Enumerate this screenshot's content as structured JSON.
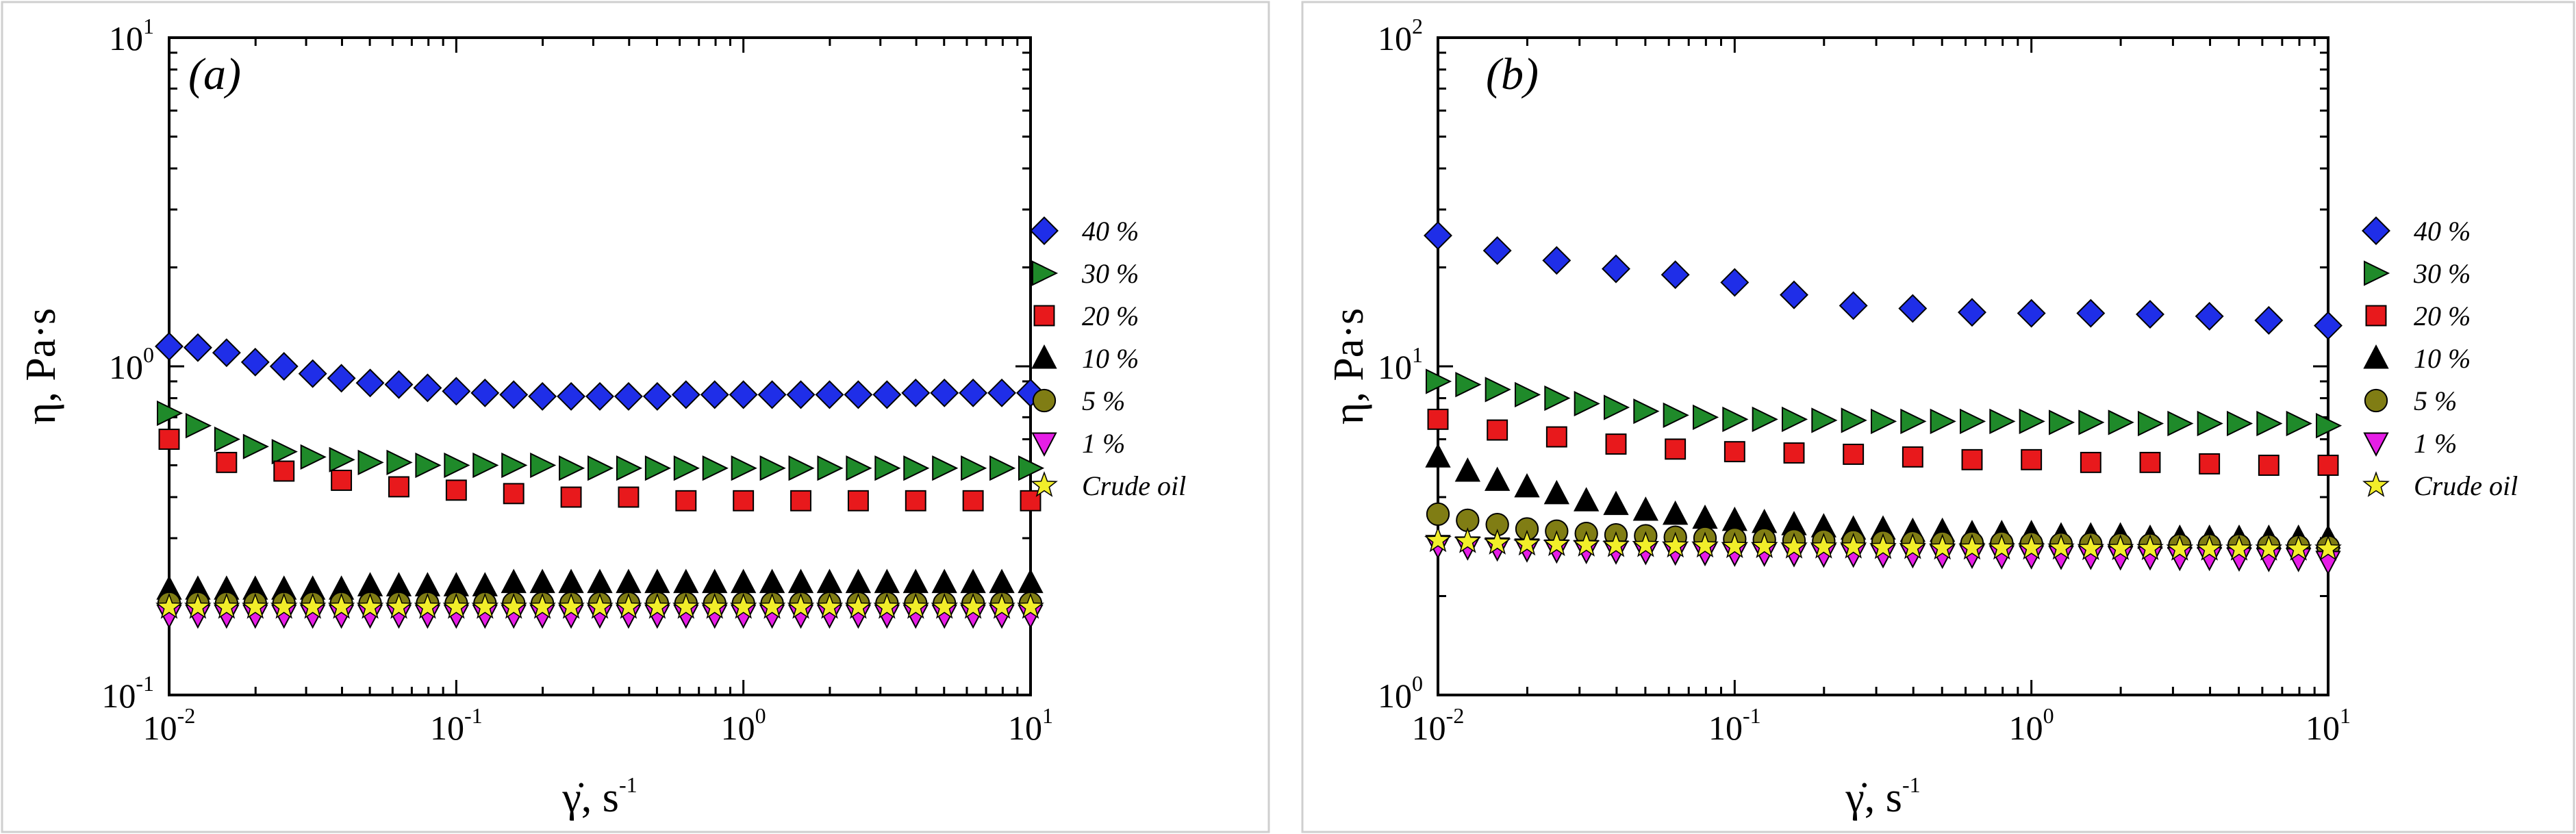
{
  "chart_data": [
    {
      "type": "scatter",
      "panel_label": "(a)",
      "xlabel": "γ̇, s",
      "xlabel_sup": "-1",
      "ylabel": "η, Pa·s",
      "xscale": "log",
      "yscale": "log",
      "xlim": [
        0.01,
        10
      ],
      "ylim": [
        0.1,
        10
      ],
      "x_ticks": [
        {
          "base": "10",
          "exp": "-2"
        },
        {
          "base": "10",
          "exp": "-1"
        },
        {
          "base": "10",
          "exp": "0"
        },
        {
          "base": "10",
          "exp": "1"
        }
      ],
      "y_ticks": [
        {
          "base": "10",
          "exp": "-1"
        },
        {
          "base": "10",
          "exp": "0"
        },
        {
          "base": "10",
          "exp": "1"
        }
      ],
      "legend_position": "right",
      "series": [
        {
          "name": "40 %",
          "marker": "diamond",
          "color": "#1f2ee8",
          "values": [
            1.15,
            1.14,
            1.1,
            1.03,
            1.0,
            0.95,
            0.92,
            0.89,
            0.88,
            0.86,
            0.84,
            0.83,
            0.82,
            0.81,
            0.81,
            0.81,
            0.81,
            0.81,
            0.82,
            0.82,
            0.82,
            0.82,
            0.82,
            0.82,
            0.82,
            0.82,
            0.83,
            0.83,
            0.83,
            0.83,
            0.83
          ]
        },
        {
          "name": "30 %",
          "marker": "triangle-right",
          "color": "#1f8a2a",
          "values": [
            0.72,
            0.66,
            0.6,
            0.57,
            0.55,
            0.53,
            0.52,
            0.51,
            0.51,
            0.5,
            0.5,
            0.5,
            0.5,
            0.5,
            0.49,
            0.49,
            0.49,
            0.49,
            0.49,
            0.49,
            0.49,
            0.49,
            0.49,
            0.49,
            0.49,
            0.49,
            0.49,
            0.49,
            0.49,
            0.49,
            0.49
          ]
        },
        {
          "name": "20 %",
          "marker": "square",
          "color": "#e8191c",
          "values": [
            0.6,
            0.51,
            0.48,
            0.45,
            0.43,
            0.42,
            0.41,
            0.4,
            0.4,
            0.39,
            0.39,
            0.39,
            0.39,
            0.39,
            0.39,
            0.39
          ]
        },
        {
          "name": "10 %",
          "marker": "triangle-up",
          "color": "#000000",
          "values": [
            0.21,
            0.21,
            0.21,
            0.21,
            0.21,
            0.21,
            0.21,
            0.215,
            0.215,
            0.215,
            0.215,
            0.215,
            0.22,
            0.22,
            0.22,
            0.22,
            0.22,
            0.22,
            0.22,
            0.22,
            0.22,
            0.22,
            0.22,
            0.22,
            0.22,
            0.22,
            0.22,
            0.22,
            0.22,
            0.22,
            0.22
          ]
        },
        {
          "name": "5 %",
          "marker": "circle",
          "color": "#807d14",
          "values": [
            0.19,
            0.19,
            0.19,
            0.19,
            0.19,
            0.19,
            0.19,
            0.19,
            0.19,
            0.19,
            0.19,
            0.19,
            0.19,
            0.19,
            0.19,
            0.19,
            0.19,
            0.19,
            0.19,
            0.19,
            0.19,
            0.19,
            0.19,
            0.19,
            0.19,
            0.19,
            0.19,
            0.19,
            0.19,
            0.19,
            0.19
          ]
        },
        {
          "name": "1 %",
          "marker": "triangle-down",
          "color": "#e61ee6",
          "values": [
            0.175,
            0.175,
            0.175,
            0.175,
            0.175,
            0.175,
            0.175,
            0.175,
            0.175,
            0.175,
            0.175,
            0.175,
            0.175,
            0.175,
            0.175,
            0.175,
            0.175,
            0.175,
            0.175,
            0.175,
            0.175,
            0.175,
            0.175,
            0.175,
            0.175,
            0.175,
            0.175,
            0.175,
            0.175,
            0.175,
            0.175
          ]
        },
        {
          "name": "Crude oil",
          "marker": "star",
          "color": "#f2ee2a",
          "values": [
            0.185,
            0.185,
            0.185,
            0.185,
            0.185,
            0.185,
            0.185,
            0.185,
            0.185,
            0.185,
            0.185,
            0.185,
            0.185,
            0.185,
            0.185,
            0.185,
            0.185,
            0.185,
            0.185,
            0.185,
            0.185,
            0.185,
            0.185,
            0.185,
            0.185,
            0.185,
            0.185,
            0.185,
            0.185,
            0.185,
            0.185
          ]
        }
      ]
    },
    {
      "type": "scatter",
      "panel_label": "(b)",
      "xlabel": "γ̇, s",
      "xlabel_sup": "-1",
      "ylabel": "η, Pa·s",
      "xscale": "log",
      "yscale": "log",
      "xlim": [
        0.01,
        10
      ],
      "ylim": [
        1,
        100
      ],
      "x_ticks": [
        {
          "base": "10",
          "exp": "-2"
        },
        {
          "base": "10",
          "exp": "-1"
        },
        {
          "base": "10",
          "exp": "0"
        },
        {
          "base": "10",
          "exp": "1"
        }
      ],
      "y_ticks": [
        {
          "base": "10",
          "exp": "0"
        },
        {
          "base": "10",
          "exp": "1"
        },
        {
          "base": "10",
          "exp": "2"
        }
      ],
      "legend_position": "right",
      "series": [
        {
          "name": "40 %",
          "marker": "diamond",
          "color": "#1f2ee8",
          "values": [
            25,
            22.5,
            21,
            19.8,
            19,
            18,
            16.5,
            15.3,
            15,
            14.6,
            14.5,
            14.5,
            14.4,
            14.2,
            13.8,
            13.3
          ]
        },
        {
          "name": "30 %",
          "marker": "triangle-right",
          "color": "#1f8a2a",
          "values": [
            9.0,
            8.8,
            8.5,
            8.2,
            8.0,
            7.7,
            7.5,
            7.3,
            7.1,
            7.0,
            6.9,
            6.9,
            6.9,
            6.85,
            6.85,
            6.8,
            6.8,
            6.8,
            6.8,
            6.8,
            6.8,
            6.75,
            6.75,
            6.75,
            6.7,
            6.7,
            6.7,
            6.7,
            6.7,
            6.7,
            6.6
          ]
        },
        {
          "name": "20 %",
          "marker": "square",
          "color": "#e8191c",
          "values": [
            6.9,
            6.4,
            6.1,
            5.8,
            5.6,
            5.5,
            5.45,
            5.4,
            5.3,
            5.2,
            5.2,
            5.1,
            5.1,
            5.05,
            5.0,
            5.0
          ]
        },
        {
          "name": "10 %",
          "marker": "triangle-up",
          "color": "#000000",
          "values": [
            5.3,
            4.8,
            4.5,
            4.3,
            4.1,
            3.9,
            3.8,
            3.65,
            3.55,
            3.45,
            3.4,
            3.35,
            3.3,
            3.25,
            3.2,
            3.2,
            3.15,
            3.15,
            3.1,
            3.1,
            3.1,
            3.05,
            3.05,
            3.05,
            3.0,
            3.0,
            3.0,
            3.0,
            3.0,
            3.0,
            3.0
          ]
        },
        {
          "name": "5 %",
          "marker": "circle",
          "color": "#807d14",
          "values": [
            3.55,
            3.4,
            3.3,
            3.2,
            3.15,
            3.1,
            3.07,
            3.05,
            3.02,
            3.0,
            2.98,
            2.97,
            2.95,
            2.94,
            2.93,
            2.92,
            2.91,
            2.9,
            2.9,
            2.9,
            2.89,
            2.88,
            2.88,
            2.87,
            2.86,
            2.85,
            2.85,
            2.85,
            2.84,
            2.83,
            2.82
          ]
        },
        {
          "name": "1 %",
          "marker": "triangle-down",
          "color": "#e61ee6",
          "values": [
            2.85,
            2.82,
            2.8,
            2.78,
            2.76,
            2.75,
            2.74,
            2.73,
            2.72,
            2.71,
            2.7,
            2.7,
            2.69,
            2.68,
            2.68,
            2.67,
            2.67,
            2.66,
            2.66,
            2.65,
            2.65,
            2.64,
            2.64,
            2.63,
            2.63,
            2.62,
            2.62,
            2.61,
            2.6,
            2.6,
            2.55
          ]
        },
        {
          "name": "Crude oil",
          "marker": "star",
          "color": "#f2ee2a",
          "values": [
            2.95,
            2.93,
            2.9,
            2.88,
            2.87,
            2.86,
            2.85,
            2.85,
            2.84,
            2.84,
            2.83,
            2.83,
            2.82,
            2.82,
            2.82,
            2.81,
            2.81,
            2.8,
            2.8,
            2.8,
            2.8,
            2.8,
            2.79,
            2.79,
            2.79,
            2.78,
            2.78,
            2.78,
            2.78,
            2.78,
            2.78
          ]
        }
      ]
    }
  ]
}
